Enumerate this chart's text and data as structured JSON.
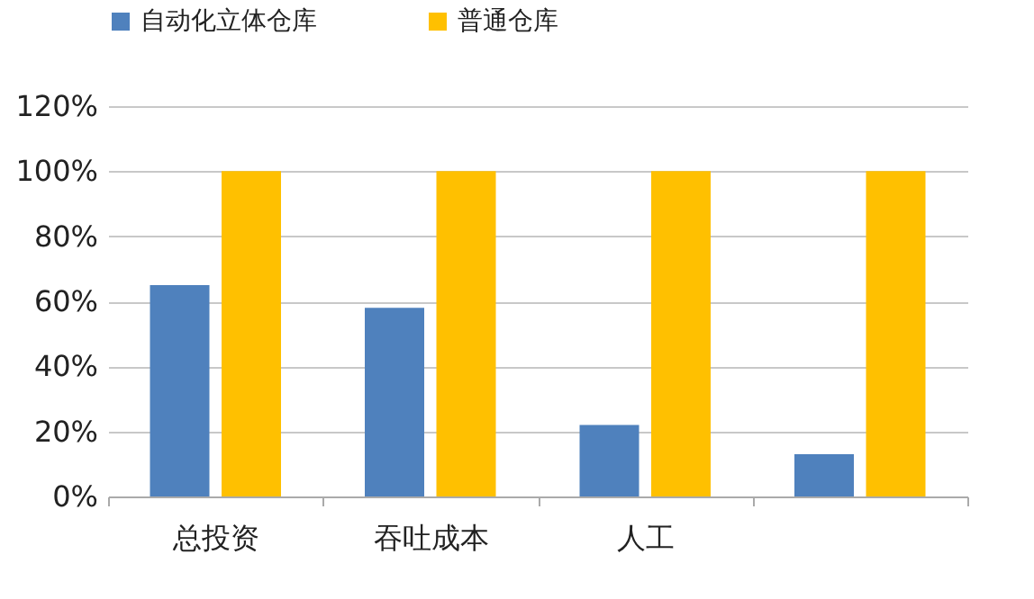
{
  "chart_data": {
    "type": "bar",
    "categories": [
      "总投资",
      "吞吐成本",
      "人工",
      null
    ],
    "series": [
      {
        "name": "自动化立体仓库",
        "color": "#4f81bd",
        "values": [
          65,
          58,
          22,
          13
        ]
      },
      {
        "name": "普通仓库",
        "color": "#ffc000",
        "values": [
          100,
          100,
          100,
          100
        ]
      }
    ],
    "ylim": [
      0,
      120
    ],
    "yticks": [
      {
        "value": 0,
        "label": "0%"
      },
      {
        "value": 20,
        "label": "20%"
      },
      {
        "value": 40,
        "label": "40%"
      },
      {
        "value": 60,
        "label": "60%"
      },
      {
        "value": 80,
        "label": "80%"
      },
      {
        "value": 100,
        "label": "100%"
      },
      {
        "value": 120,
        "label": "120%"
      }
    ],
    "grid": "y",
    "legend": "top"
  }
}
